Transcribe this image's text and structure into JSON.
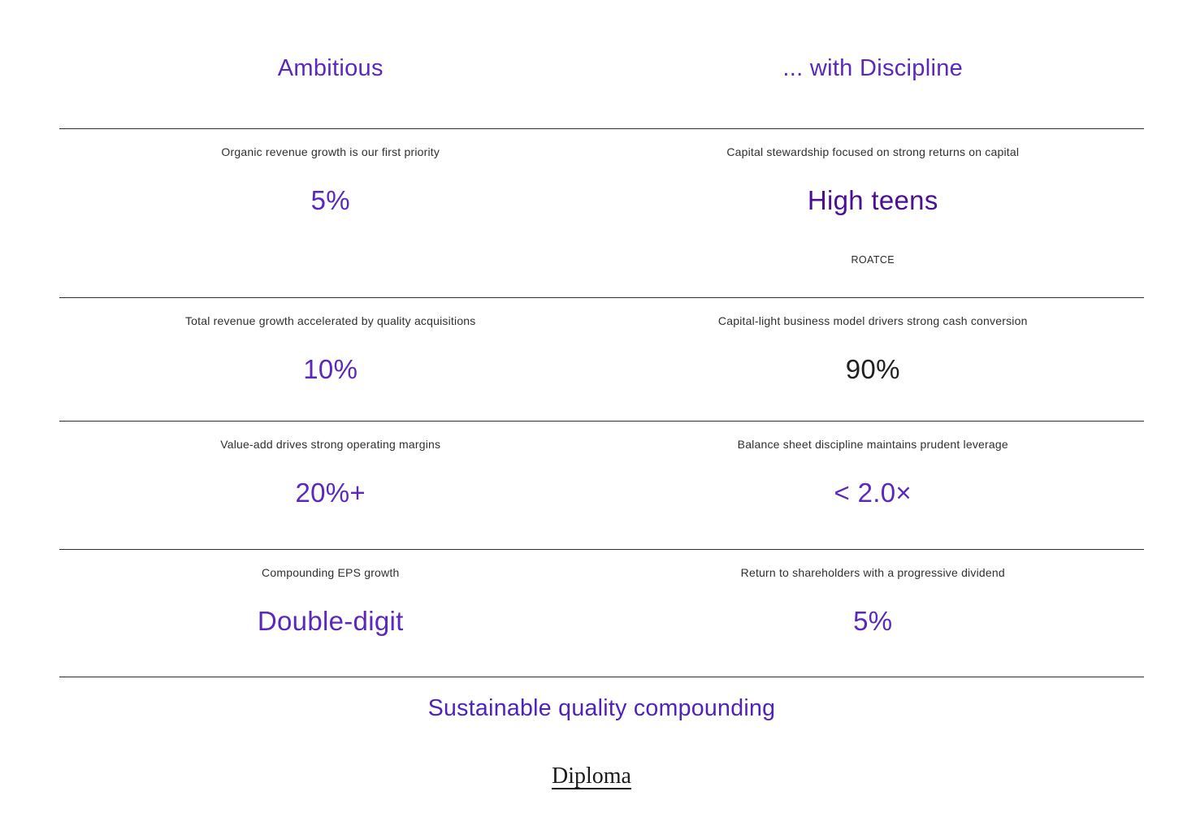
{
  "columns": {
    "left_heading": "Ambitious",
    "right_heading": "... with Discipline"
  },
  "rows": [
    {
      "left": {
        "label": "Organic revenue growth is our first priority",
        "value": "5%"
      },
      "right": {
        "label": "Capital stewardship focused on strong returns on capital",
        "value": "High teens",
        "subvalue": "ROATCE"
      }
    },
    {
      "left": {
        "label": "Total revenue growth accelerated by quality acquisitions",
        "value": "10%"
      },
      "right": {
        "label": "Capital-light business model drivers strong cash conversion",
        "value": "90%"
      }
    },
    {
      "left": {
        "label": "Value-add drives strong operating margins",
        "value": "20%+"
      },
      "right": {
        "label": "Balance sheet discipline maintains prudent leverage",
        "value": "< 2.0×"
      }
    },
    {
      "left": {
        "label": "Compounding EPS growth",
        "value": "Double-digit"
      },
      "right": {
        "label": "Return to shareholders with a progressive dividend",
        "value": "5%"
      }
    }
  ],
  "footer": {
    "tagline": "Sustainable quality compounding",
    "brand": "Diploma"
  },
  "colors": {
    "accent_purple": "#5a28bd",
    "deep_purple": "#4a1092",
    "value_dark": "#1f1f1f",
    "label_gray": "#303030",
    "divider": "#2e2e2e",
    "background": "#ffffff"
  }
}
